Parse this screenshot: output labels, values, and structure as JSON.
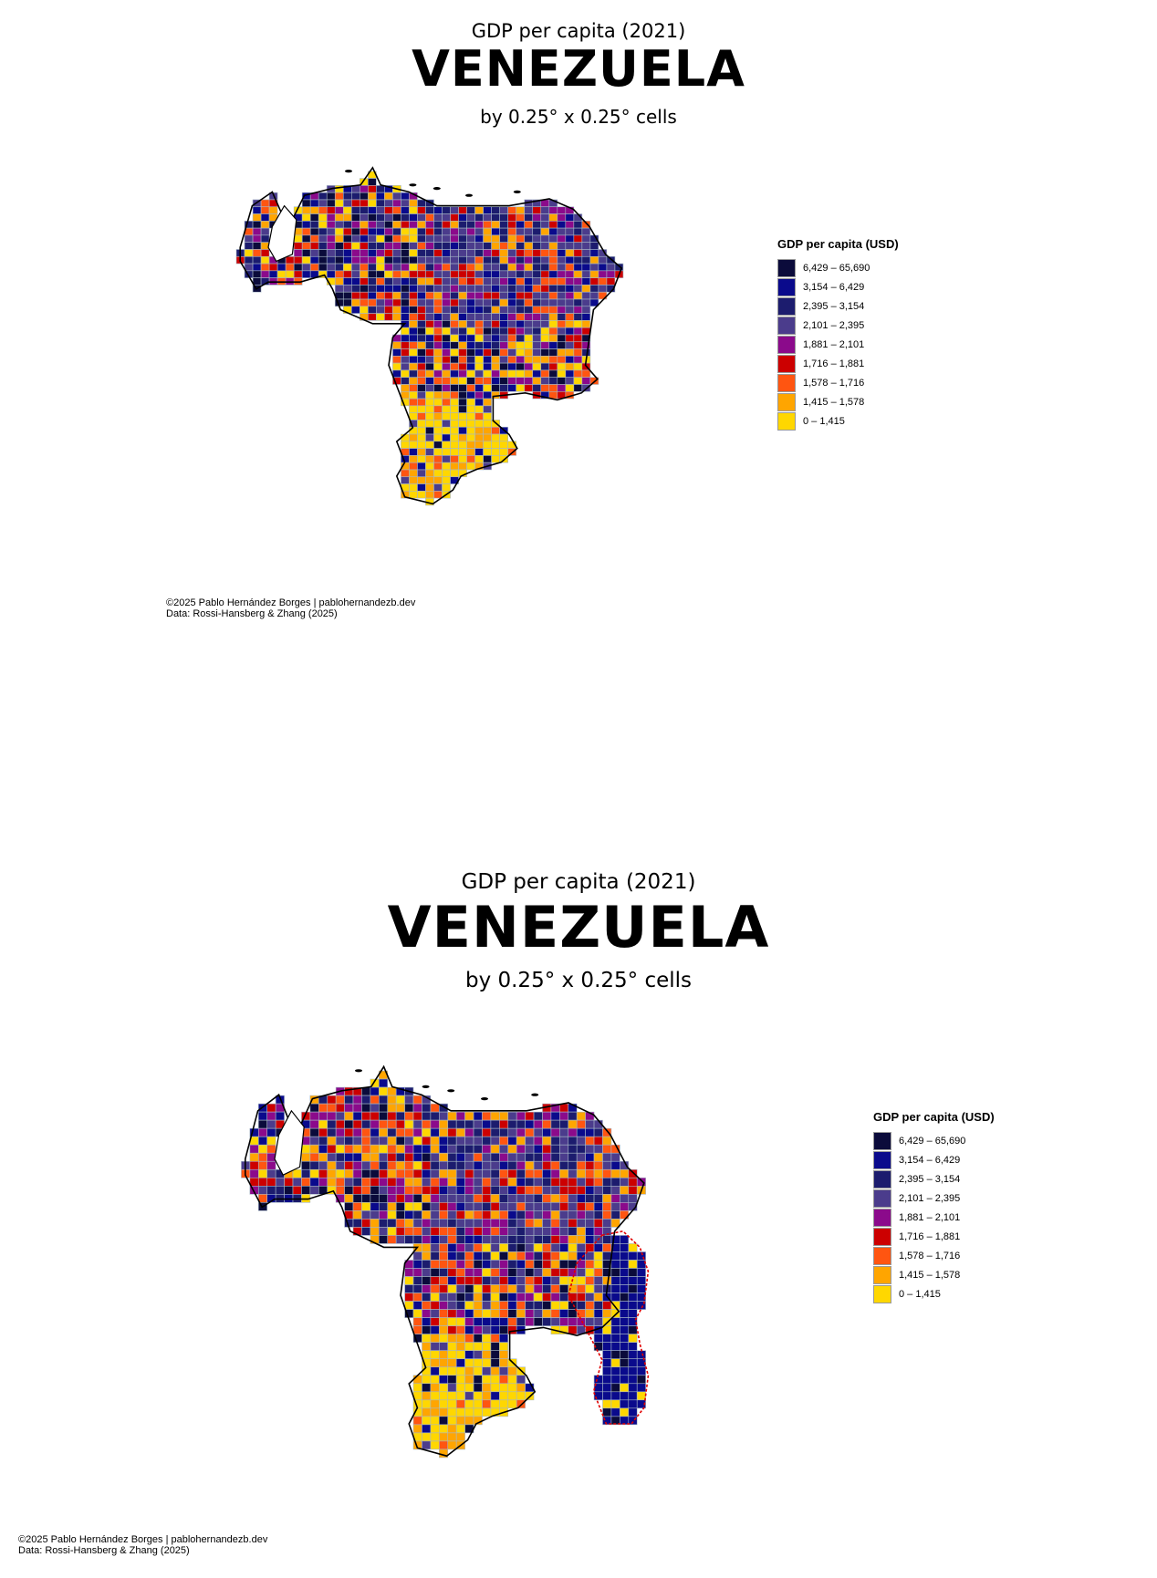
{
  "panels": [
    {
      "supertitle": "GDP per capita (2021)",
      "title": "VENEZUELA",
      "subtitle": "by 0.25° x 0.25° cells",
      "legend_title": "GDP per capita (USD)",
      "credit_line1": "©2025 Pablo Hernández Borges | pablohernandezb.dev",
      "credit_line2": "Data: Rossi-Hansberg & Zhang (2025)",
      "includes_essequibo": false
    },
    {
      "supertitle": "GDP per capita (2021)",
      "title": "VENEZUELA",
      "subtitle": "by 0.25° x 0.25° cells",
      "legend_title": "GDP per capita (USD)",
      "credit_line1": "©2025 Pablo Hernández Borges | pablohernandezb.dev",
      "credit_line2": "Data: Rossi-Hansberg & Zhang (2025)",
      "includes_essequibo": true
    }
  ],
  "legend": [
    {
      "label": "6,429 – 65,690",
      "color": "#0b0b3b"
    },
    {
      "label": "3,154 – 6,429",
      "color": "#0a0a8c"
    },
    {
      "label": "2,395 – 3,154",
      "color": "#1c1c6e"
    },
    {
      "label": "2,101 – 2,395",
      "color": "#4b3c8c"
    },
    {
      "label": "1,881 – 2,101",
      "color": "#8b0a8b"
    },
    {
      "label": "1,716 – 1,881",
      "color": "#cc0000"
    },
    {
      "label": "1,578 – 1,716",
      "color": "#ff5511"
    },
    {
      "label": "1,415 – 1,578",
      "color": "#ffa500"
    },
    {
      "label": "0 – 1,415",
      "color": "#ffd700"
    }
  ],
  "colors": {
    "cell_border": "#a7b7c7",
    "country_outline": "#000000",
    "essequibo_outline": "#e00000",
    "background": "#ffffff"
  }
}
